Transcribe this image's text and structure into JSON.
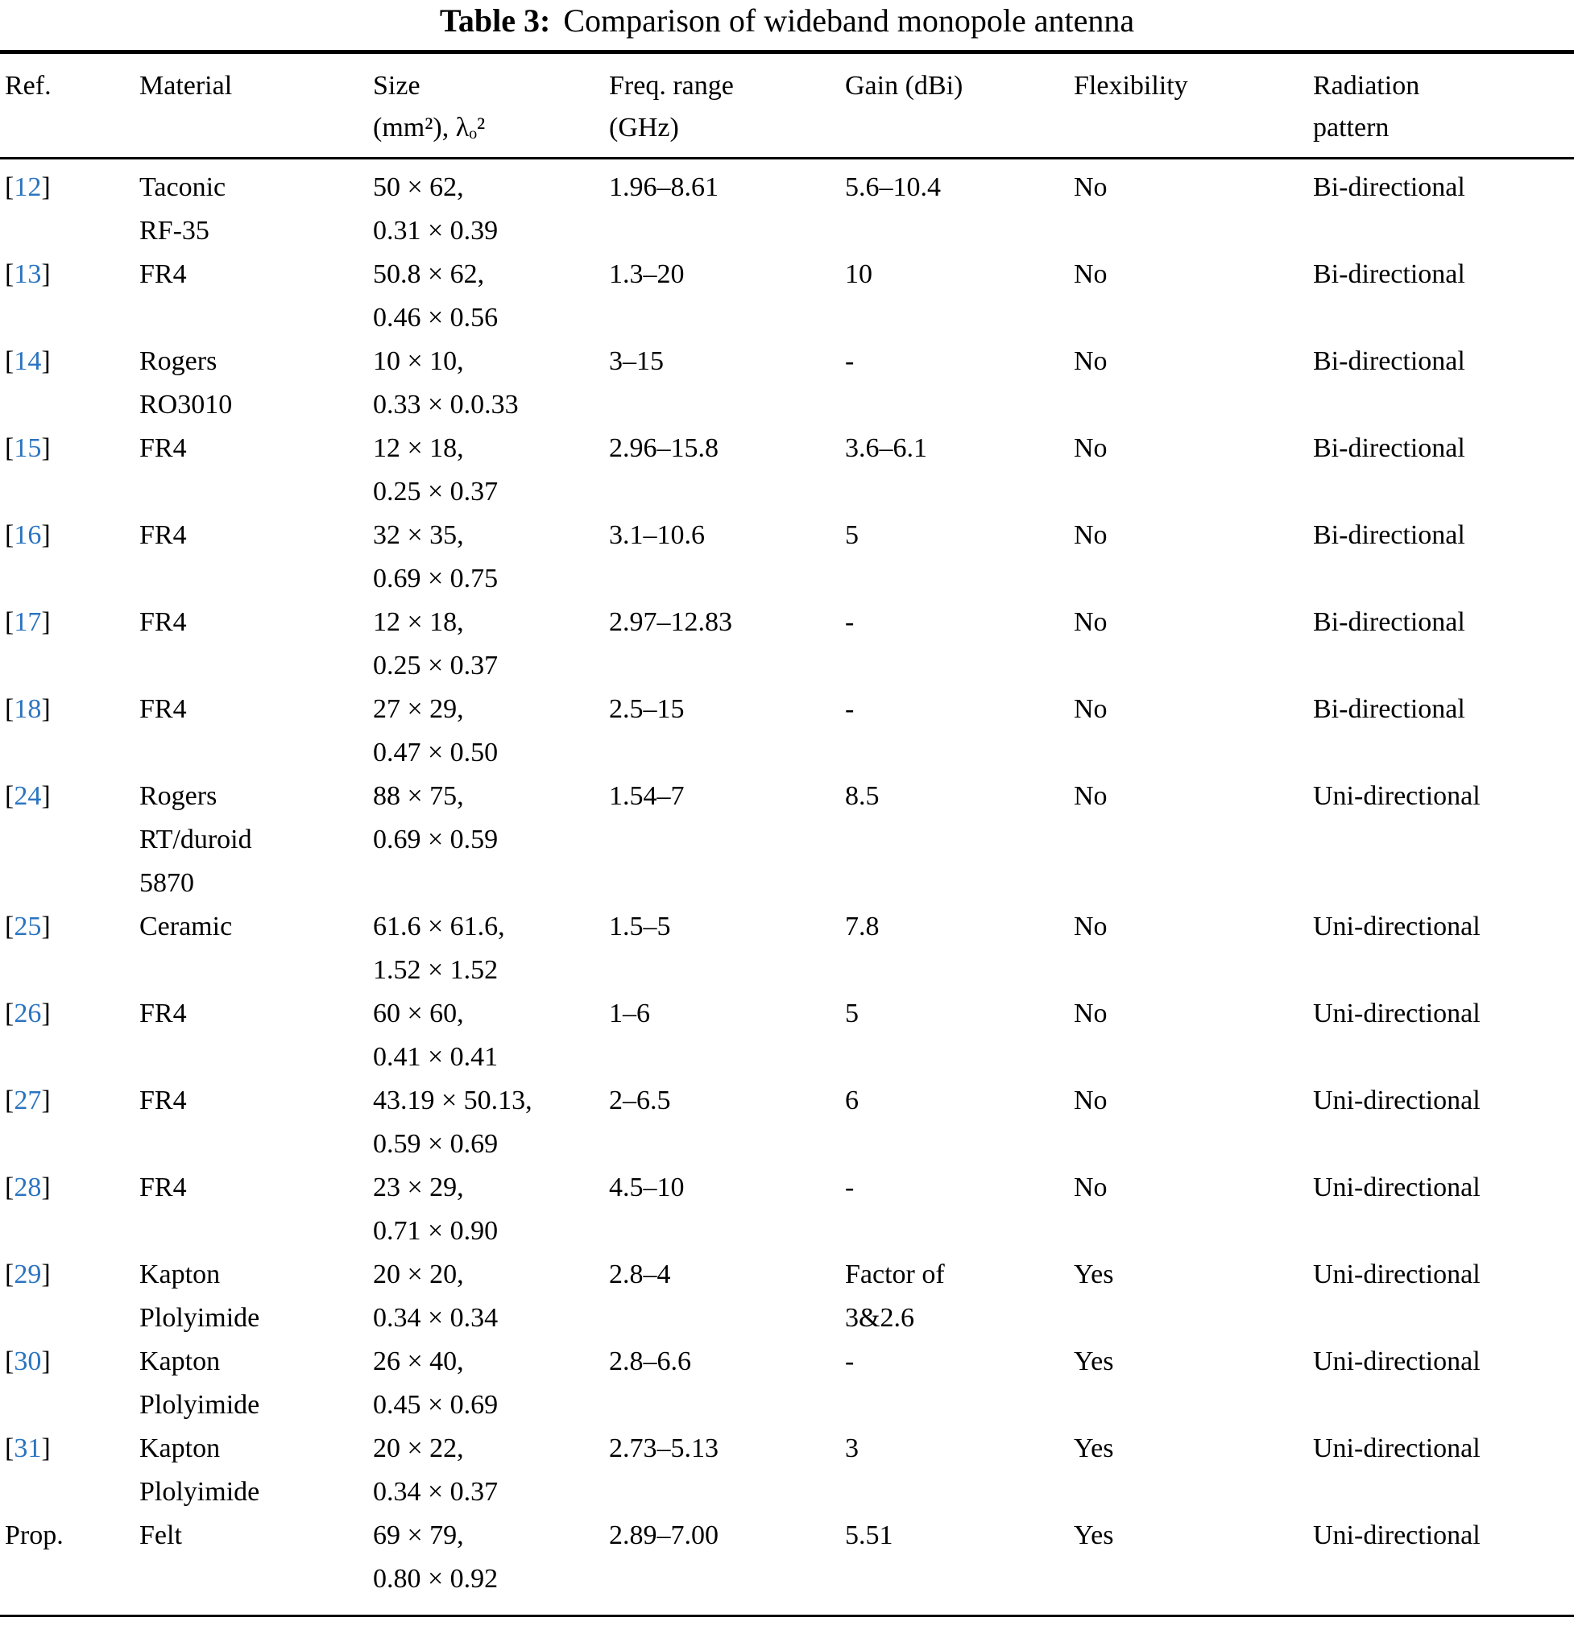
{
  "caption": {
    "label": "Table 3:",
    "text": "Comparison of wideband monopole antenna"
  },
  "table": {
    "bracket_open": "[",
    "bracket_close": "]",
    "link_color": "#2b74c0",
    "columns": [
      {
        "id": "ref",
        "lines": [
          "Ref."
        ]
      },
      {
        "id": "material",
        "lines": [
          "Material"
        ]
      },
      {
        "id": "size",
        "lines": [
          "Size",
          "(mm²), λₒ²"
        ]
      },
      {
        "id": "freq",
        "lines": [
          "Freq. range",
          "(GHz)"
        ]
      },
      {
        "id": "gain",
        "lines": [
          "Gain (dBi)"
        ]
      },
      {
        "id": "flexibility",
        "lines": [
          "Flexibility"
        ]
      },
      {
        "id": "radiation",
        "lines": [
          "Radiation",
          "pattern"
        ]
      }
    ],
    "rows": [
      {
        "ref": {
          "num": "12",
          "link": true
        },
        "material": [
          "Taconic",
          "RF-35"
        ],
        "size": [
          "50 × 62,",
          "0.31 × 0.39"
        ],
        "freq": [
          "1.96–8.61"
        ],
        "gain": [
          "5.6–10.4"
        ],
        "flexibility": [
          "No"
        ],
        "radiation": [
          "Bi-directional"
        ]
      },
      {
        "ref": {
          "num": "13",
          "link": true
        },
        "material": [
          "FR4"
        ],
        "size": [
          "50.8 × 62,",
          "0.46 × 0.56"
        ],
        "freq": [
          "1.3–20"
        ],
        "gain": [
          "10"
        ],
        "flexibility": [
          "No"
        ],
        "radiation": [
          "Bi-directional"
        ]
      },
      {
        "ref": {
          "num": "14",
          "link": true
        },
        "material": [
          "Rogers",
          "RO3010"
        ],
        "size": [
          "10 × 10,",
          "0.33 × 0.0.33"
        ],
        "freq": [
          "3–15"
        ],
        "gain": [
          "-"
        ],
        "flexibility": [
          "No"
        ],
        "radiation": [
          "Bi-directional"
        ]
      },
      {
        "ref": {
          "num": "15",
          "link": true
        },
        "material": [
          "FR4"
        ],
        "size": [
          "12 × 18,",
          "0.25 × 0.37"
        ],
        "freq": [
          "2.96–15.8"
        ],
        "gain": [
          "3.6–6.1"
        ],
        "flexibility": [
          "No"
        ],
        "radiation": [
          "Bi-directional"
        ]
      },
      {
        "ref": {
          "num": "16",
          "link": true
        },
        "material": [
          "FR4"
        ],
        "size": [
          "32 × 35,",
          "0.69 × 0.75"
        ],
        "freq": [
          "3.1–10.6"
        ],
        "gain": [
          "5"
        ],
        "flexibility": [
          "No"
        ],
        "radiation": [
          "Bi-directional"
        ]
      },
      {
        "ref": {
          "num": "17",
          "link": true
        },
        "material": [
          "FR4"
        ],
        "size": [
          "12 × 18,",
          "0.25 × 0.37"
        ],
        "freq": [
          "2.97–12.83"
        ],
        "gain": [
          "-"
        ],
        "flexibility": [
          "No"
        ],
        "radiation": [
          "Bi-directional"
        ]
      },
      {
        "ref": {
          "num": "18",
          "link": true
        },
        "material": [
          "FR4"
        ],
        "size": [
          "27 × 29,",
          "0.47 × 0.50"
        ],
        "freq": [
          "2.5–15"
        ],
        "gain": [
          "-"
        ],
        "flexibility": [
          "No"
        ],
        "radiation": [
          "Bi-directional"
        ]
      },
      {
        "ref": {
          "num": "24",
          "link": true
        },
        "material": [
          "Rogers",
          "RT/duroid",
          "5870"
        ],
        "size": [
          "88 × 75,",
          "0.69 × 0.59"
        ],
        "freq": [
          "1.54–7"
        ],
        "gain": [
          "8.5"
        ],
        "flexibility": [
          "No"
        ],
        "radiation": [
          "Uni-directional"
        ]
      },
      {
        "ref": {
          "num": "25",
          "link": true
        },
        "material": [
          "Ceramic"
        ],
        "size": [
          "61.6 × 61.6,",
          "1.52 × 1.52"
        ],
        "freq": [
          "1.5–5"
        ],
        "gain": [
          "7.8"
        ],
        "flexibility": [
          "No"
        ],
        "radiation": [
          "Uni-directional"
        ]
      },
      {
        "ref": {
          "num": "26",
          "link": true
        },
        "material": [
          "FR4"
        ],
        "size": [
          "60 × 60,",
          "0.41 × 0.41"
        ],
        "freq": [
          "1–6"
        ],
        "gain": [
          "5"
        ],
        "flexibility": [
          "No"
        ],
        "radiation": [
          "Uni-directional"
        ]
      },
      {
        "ref": {
          "num": "27",
          "link": true
        },
        "material": [
          "FR4"
        ],
        "size": [
          "43.19 × 50.13,",
          "0.59 × 0.69"
        ],
        "freq": [
          "2–6.5"
        ],
        "gain": [
          "6"
        ],
        "flexibility": [
          "No"
        ],
        "radiation": [
          "Uni-directional"
        ]
      },
      {
        "ref": {
          "num": "28",
          "link": true
        },
        "material": [
          "FR4"
        ],
        "size": [
          "23 × 29,",
          "0.71 × 0.90"
        ],
        "freq": [
          "4.5–10"
        ],
        "gain": [
          "-"
        ],
        "flexibility": [
          "No"
        ],
        "radiation": [
          "Uni-directional"
        ]
      },
      {
        "ref": {
          "num": "29",
          "link": true
        },
        "material": [
          "Kapton",
          "Plolyimide"
        ],
        "size": [
          "20 × 20,",
          "0.34 × 0.34"
        ],
        "freq": [
          "2.8–4"
        ],
        "gain": [
          "Factor of",
          "3&2.6"
        ],
        "flexibility": [
          "Yes"
        ],
        "radiation": [
          "Uni-directional"
        ]
      },
      {
        "ref": {
          "num": "30",
          "link": true
        },
        "material": [
          "Kapton",
          "Plolyimide"
        ],
        "size": [
          "26 × 40,",
          "0.45 × 0.69"
        ],
        "freq": [
          "2.8–6.6"
        ],
        "gain": [
          "-"
        ],
        "flexibility": [
          "Yes"
        ],
        "radiation": [
          "Uni-directional"
        ]
      },
      {
        "ref": {
          "num": "31",
          "link": true
        },
        "material": [
          "Kapton",
          "Plolyimide"
        ],
        "size": [
          "20 × 22,",
          "0.34 × 0.37"
        ],
        "freq": [
          "2.73–5.13"
        ],
        "gain": [
          "3"
        ],
        "flexibility": [
          "Yes"
        ],
        "radiation": [
          "Uni-directional"
        ]
      },
      {
        "ref": {
          "num": "Prop.",
          "link": false
        },
        "material": [
          "Felt"
        ],
        "size": [
          "69 × 79,",
          "0.80 × 0.92"
        ],
        "freq": [
          "2.89–7.00"
        ],
        "gain": [
          "5.51"
        ],
        "flexibility": [
          "Yes"
        ],
        "radiation": [
          "Uni-directional"
        ]
      }
    ]
  }
}
